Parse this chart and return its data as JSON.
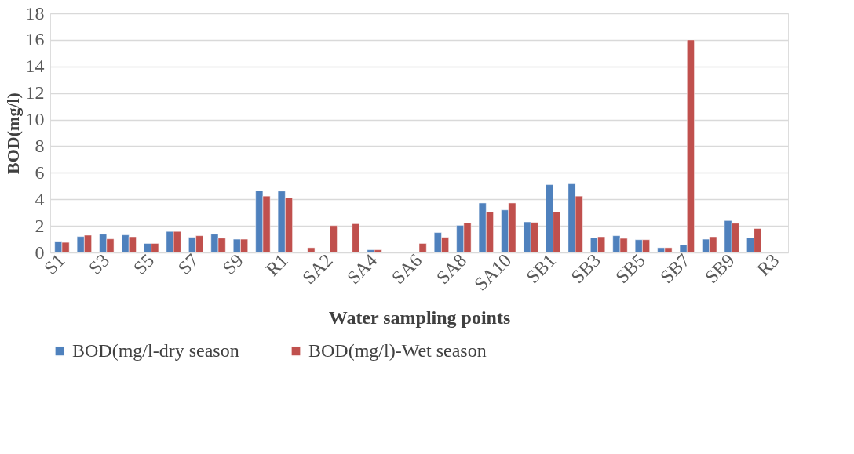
{
  "chart_data": {
    "type": "bar",
    "xlabel": "Water sampling points",
    "ylabel": "BOD(mg/l)",
    "categories": [
      "S1",
      null,
      "S3",
      null,
      "S5",
      null,
      "S7",
      null,
      "S9",
      null,
      "R1",
      null,
      "SA2",
      null,
      "SA4",
      null,
      "SA6",
      null,
      "SA8",
      null,
      "SA10",
      null,
      "SB1",
      null,
      "SB3",
      null,
      "SB5",
      null,
      "SB7",
      null,
      "SB9",
      null,
      "R3"
    ],
    "series": [
      {
        "name": "BOD(mg/l-dry season",
        "color": "#4f81bd",
        "values": [
          0.84,
          1.2,
          1.38,
          1.32,
          0.68,
          1.58,
          1.14,
          1.38,
          1.0,
          4.64,
          4.62,
          null,
          null,
          null,
          0.2,
          null,
          null,
          1.5,
          2.04,
          3.72,
          3.2,
          2.3,
          5.1,
          5.16,
          1.12,
          1.26,
          0.96,
          0.36,
          0.58,
          1.0,
          2.4,
          1.1,
          null
        ]
      },
      {
        "name": "BOD(mg/l)-Wet season",
        "color": "#c0504d",
        "values": [
          0.76,
          1.3,
          1.02,
          1.18,
          0.68,
          1.58,
          1.26,
          1.08,
          1.0,
          4.24,
          4.12,
          0.36,
          2.02,
          2.16,
          0.2,
          null,
          0.68,
          1.14,
          2.22,
          3.04,
          3.72,
          2.26,
          3.04,
          4.24,
          1.18,
          1.06,
          0.96,
          0.36,
          16,
          1.18,
          2.2,
          1.8,
          null
        ]
      }
    ],
    "ylim": [
      0,
      18
    ],
    "yticks": [
      0,
      2,
      4,
      6,
      8,
      10,
      12,
      14,
      16,
      18
    ],
    "grid": "y",
    "legend": "bottom"
  }
}
